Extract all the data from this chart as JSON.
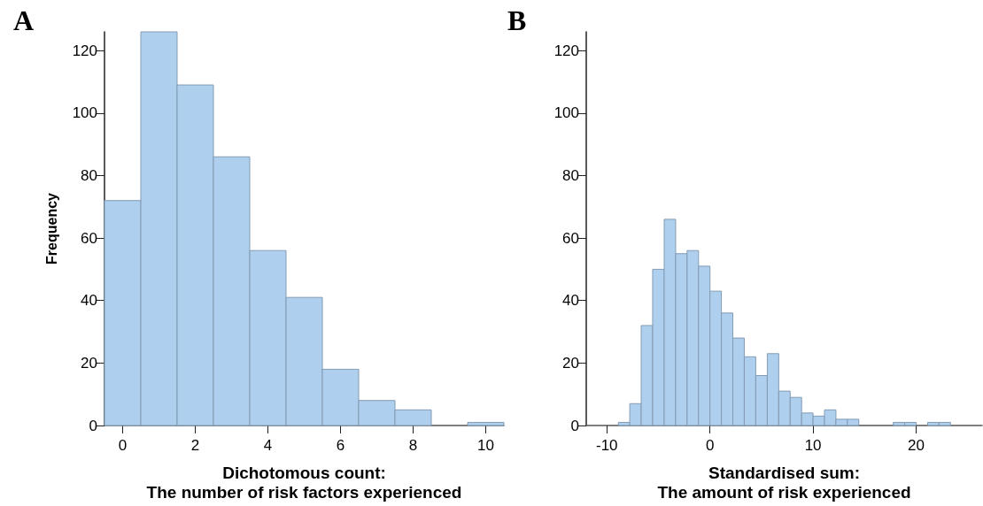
{
  "chart_data": [
    {
      "type": "histogram",
      "title": "A",
      "xlabel": "Dichotomous count:\nThe number of risk factors experienced",
      "ylabel": "Frequency",
      "color": "#aecfee",
      "bins": [
        -0.5,
        0.5,
        1.5,
        2.5,
        3.5,
        4.5,
        5.5,
        6.5,
        7.5,
        8.5,
        9.5,
        10.5
      ],
      "values": [
        72,
        126,
        109,
        86,
        56,
        41,
        18,
        8,
        5,
        0,
        1
      ],
      "xlim": [
        -0.5,
        10.5
      ],
      "xticks": [
        0,
        2,
        4,
        6,
        8,
        10
      ],
      "ylim": [
        0,
        126
      ],
      "yticks": [
        0,
        20,
        40,
        60,
        80,
        100,
        120
      ],
      "grid": false
    },
    {
      "type": "histogram",
      "title": "B",
      "xlabel": "Standardised sum:\nThe amount of risk experienced",
      "color": "#aecfee",
      "bins": [
        -8.89,
        -7.78,
        -6.67,
        -5.56,
        -4.44,
        -3.33,
        -2.22,
        -1.11,
        0,
        1.11,
        2.22,
        3.33,
        4.44,
        5.56,
        6.67,
        7.78,
        8.89,
        10,
        11.11,
        12.22,
        13.33,
        14.44,
        15.56,
        16.67,
        17.78,
        18.89,
        20,
        21.11,
        22.22,
        23.33
      ],
      "values": [
        1,
        7,
        32,
        50,
        66,
        55,
        56,
        51,
        43,
        36,
        28,
        22,
        16,
        23,
        11,
        9,
        4,
        3,
        5,
        2,
        2,
        0,
        0,
        0,
        1,
        1,
        0,
        1,
        1
      ],
      "xlim": [
        -12,
        26.4
      ],
      "xticks": [
        -10,
        0,
        10,
        20
      ],
      "ylim": [
        0,
        126
      ],
      "yticks": [
        0,
        20,
        40,
        60,
        80,
        100,
        120
      ],
      "grid": false
    }
  ]
}
